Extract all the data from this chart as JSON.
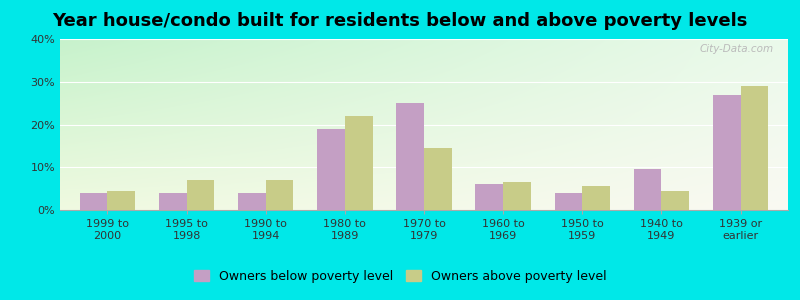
{
  "title": "Year house/condo built for residents below and above poverty levels",
  "categories": [
    "1999 to\n2000",
    "1995 to\n1998",
    "1990 to\n1994",
    "1980 to\n1989",
    "1970 to\n1979",
    "1960 to\n1969",
    "1950 to\n1959",
    "1940 to\n1949",
    "1939 or\nearlier"
  ],
  "below_poverty": [
    4.0,
    4.0,
    4.0,
    19.0,
    25.0,
    6.0,
    4.0,
    9.5,
    27.0
  ],
  "above_poverty": [
    4.5,
    7.0,
    7.0,
    22.0,
    14.5,
    6.5,
    5.5,
    4.5,
    29.0
  ],
  "below_color": "#c49fc4",
  "above_color": "#c8cc88",
  "background_outer": "#00e8e8",
  "ylim": [
    0,
    40
  ],
  "yticks": [
    0,
    10,
    20,
    30,
    40
  ],
  "ytick_labels": [
    "0%",
    "10%",
    "20%",
    "30%",
    "40%"
  ],
  "legend_below": "Owners below poverty level",
  "legend_above": "Owners above poverty level",
  "bar_width": 0.35,
  "title_fontsize": 13,
  "tick_fontsize": 8,
  "legend_fontsize": 9,
  "watermark": "City-Data.com",
  "grad_topleft": [
    0.78,
    0.95,
    0.8
  ],
  "grad_topright": [
    0.92,
    0.98,
    0.92
  ],
  "grad_bottomleft": [
    0.94,
    0.98,
    0.88
  ],
  "grad_bottomright": [
    0.98,
    0.98,
    0.95
  ]
}
